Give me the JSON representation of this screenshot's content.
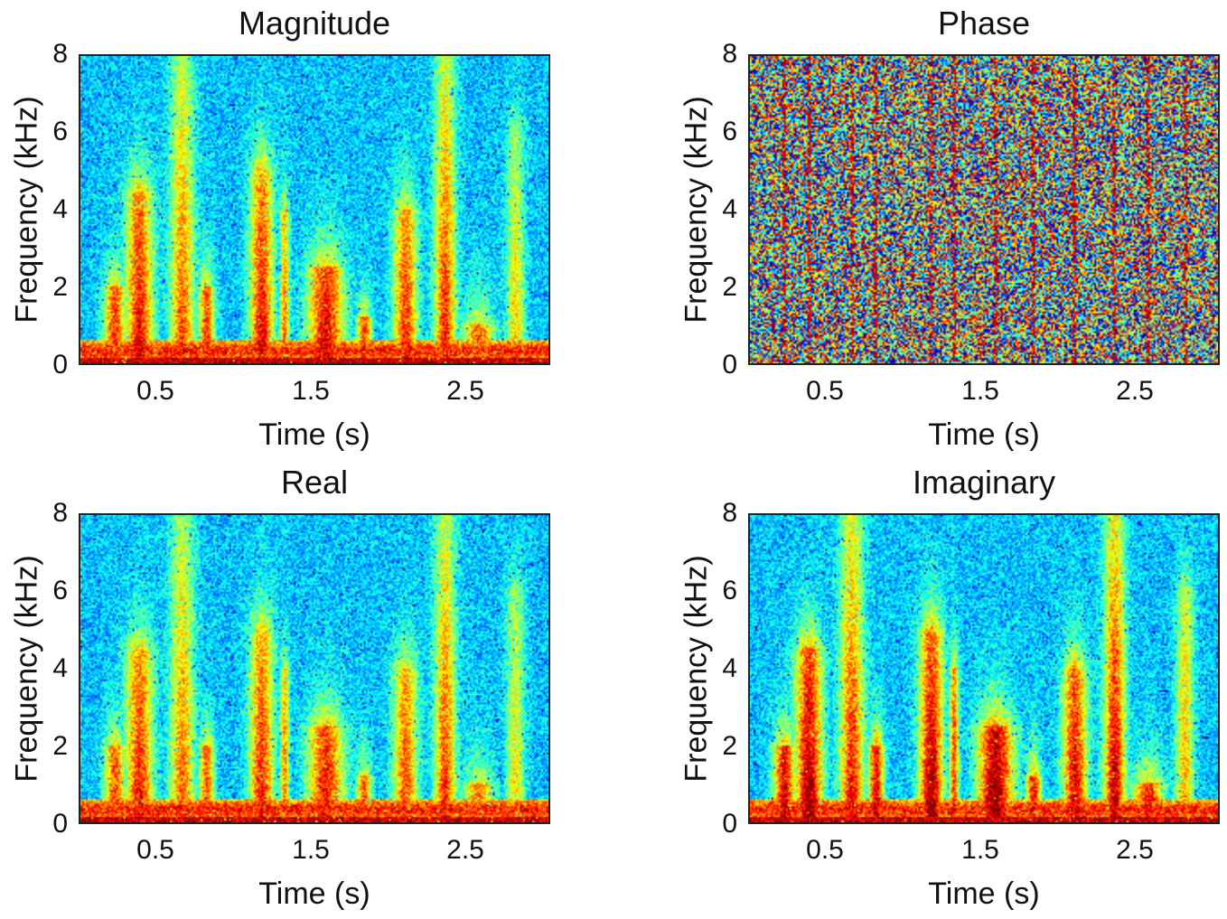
{
  "chart_data": [
    {
      "type": "heatmap",
      "title": "Magnitude",
      "xlabel": "Time (s)",
      "ylabel": "Frequency (kHz)",
      "xlim": [
        0,
        3.05
      ],
      "ylim": [
        0,
        8
      ],
      "xticks": [
        "0.5",
        "1.5",
        "2.5"
      ],
      "xtick_values": [
        0.5,
        1.5,
        2.5
      ],
      "yticks": [
        "0",
        "2",
        "4",
        "6",
        "8"
      ],
      "ytick_values": [
        0,
        2,
        4,
        6,
        8
      ],
      "colormap": "jet",
      "pattern": "speech"
    },
    {
      "type": "heatmap",
      "title": "Phase",
      "xlabel": "Time (s)",
      "ylabel": "Frequency (kHz)",
      "xlim": [
        0,
        3.05
      ],
      "ylim": [
        0,
        8
      ],
      "xticks": [
        "0.5",
        "1.5",
        "2.5"
      ],
      "xtick_values": [
        0.5,
        1.5,
        2.5
      ],
      "yticks": [
        "0",
        "2",
        "4",
        "6",
        "8"
      ],
      "ytick_values": [
        0,
        2,
        4,
        6,
        8
      ],
      "colormap": "jet",
      "pattern": "noise"
    },
    {
      "type": "heatmap",
      "title": "Real",
      "xlabel": "Time (s)",
      "ylabel": "Frequency (kHz)",
      "xlim": [
        0,
        3.05
      ],
      "ylim": [
        0,
        8
      ],
      "xticks": [
        "0.5",
        "1.5",
        "2.5"
      ],
      "xtick_values": [
        0.5,
        1.5,
        2.5
      ],
      "yticks": [
        "0",
        "2",
        "4",
        "6",
        "8"
      ],
      "ytick_values": [
        0,
        2,
        4,
        6,
        8
      ],
      "colormap": "jet",
      "pattern": "speech"
    },
    {
      "type": "heatmap",
      "title": "Imaginary",
      "xlabel": "Time (s)",
      "ylabel": "Frequency (kHz)",
      "xlim": [
        0,
        3.05
      ],
      "ylim": [
        0,
        8
      ],
      "xticks": [
        "0.5",
        "1.5",
        "2.5"
      ],
      "xtick_values": [
        0.5,
        1.5,
        2.5
      ],
      "yticks": [
        "0",
        "2",
        "4",
        "6",
        "8"
      ],
      "ytick_values": [
        0,
        2,
        4,
        6,
        8
      ],
      "colormap": "jet",
      "pattern": "speech"
    }
  ]
}
